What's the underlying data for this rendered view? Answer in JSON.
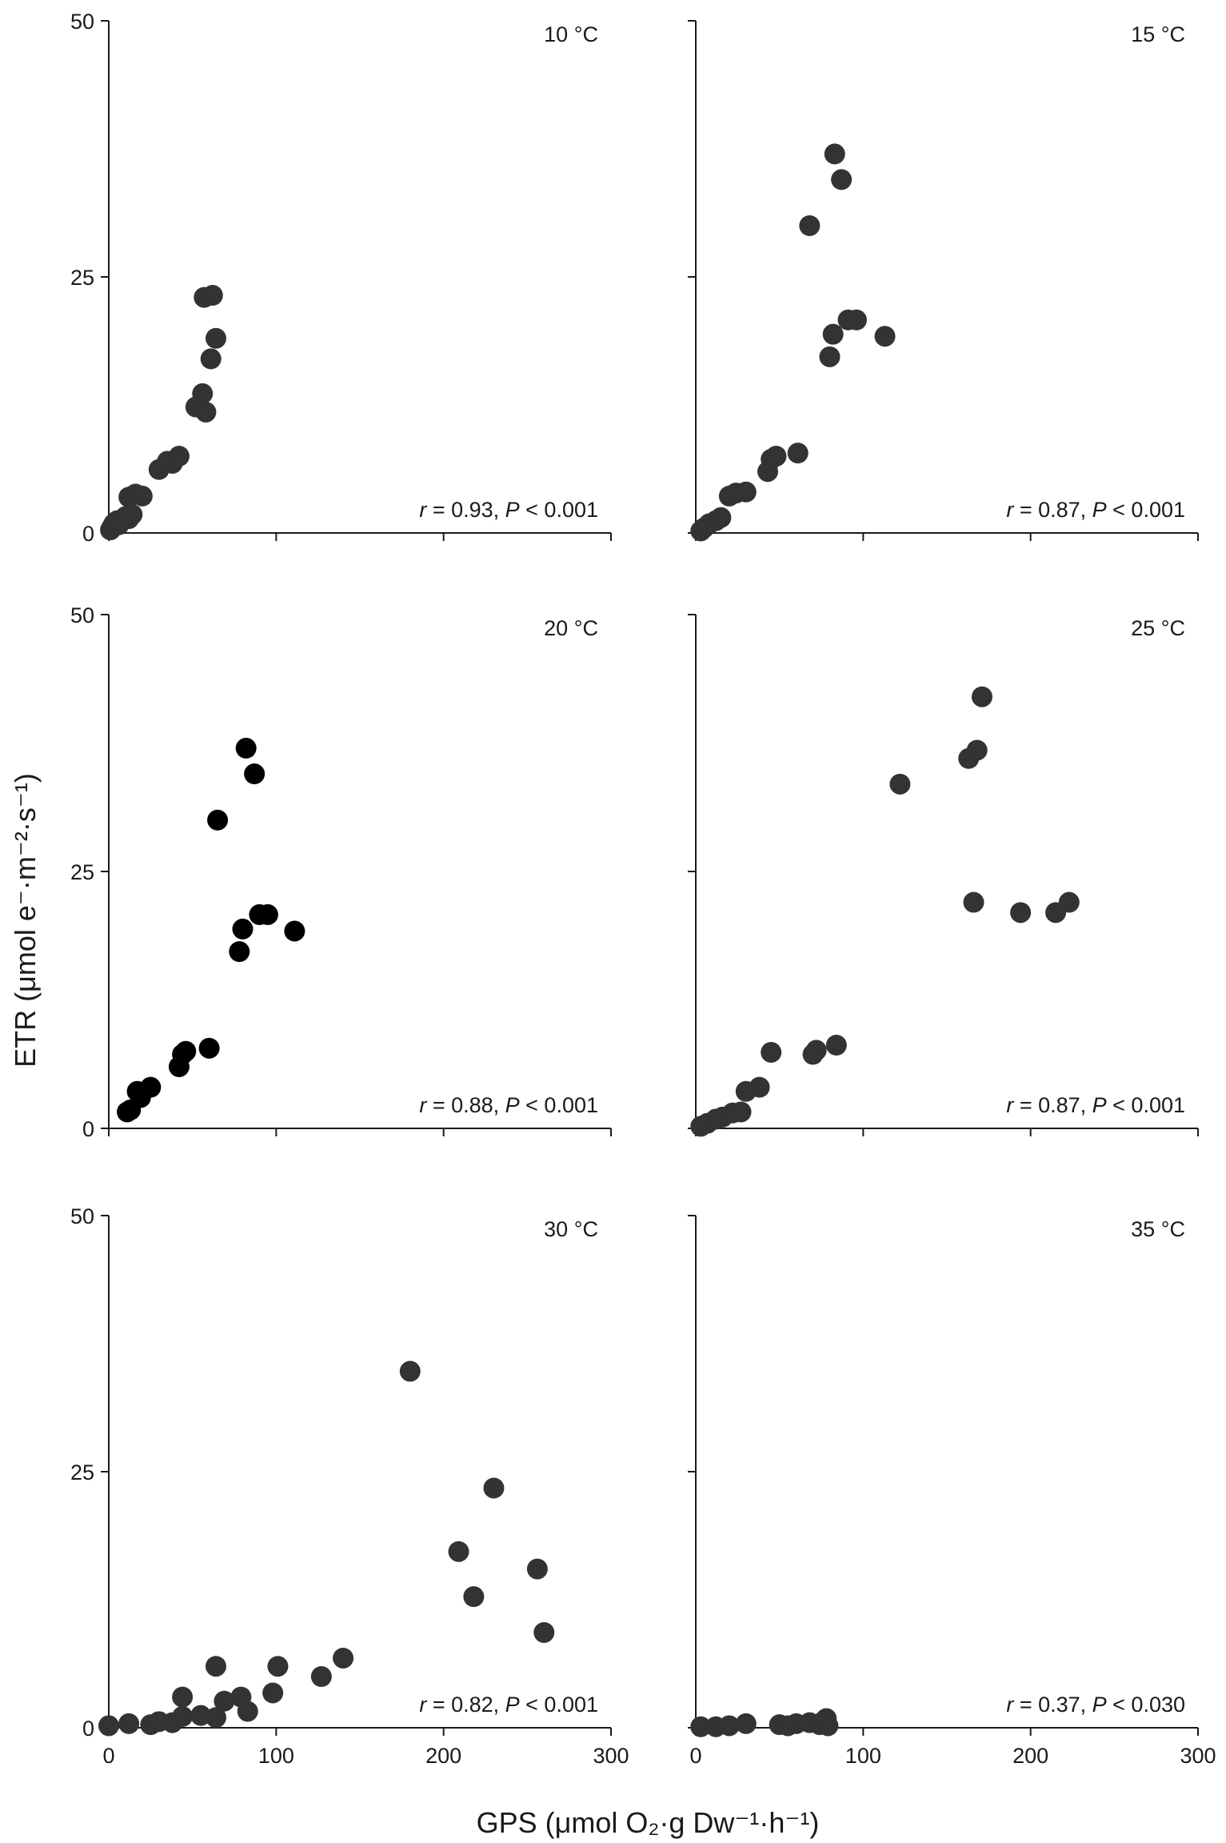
{
  "figure": {
    "xlabel": "GPS (μmol O₂·g Dw⁻¹·h⁻¹)",
    "ylabel": "ETR (μmol e⁻·m⁻²·s⁻¹)"
  },
  "chart_data": [
    {
      "type": "scatter",
      "title": "10 °C",
      "annotation": "r = 0.93, P < 0.001",
      "xlim": [
        0,
        300
      ],
      "ylim": [
        0,
        50
      ],
      "xticks": [
        "0",
        "100",
        "200",
        "300"
      ],
      "yticks": [
        "0",
        "25",
        "50"
      ],
      "show_xticks_labels": false,
      "marker_color": "#333333",
      "points": [
        [
          1,
          0.3
        ],
        [
          2,
          0.6
        ],
        [
          3,
          0.9
        ],
        [
          4,
          1.0
        ],
        [
          5,
          1.2
        ],
        [
          6,
          0.8
        ],
        [
          8,
          1.3
        ],
        [
          10,
          1.6
        ],
        [
          12,
          1.4
        ],
        [
          14,
          1.8
        ],
        [
          12,
          3.5
        ],
        [
          16,
          3.8
        ],
        [
          20,
          3.6
        ],
        [
          30,
          6.2
        ],
        [
          35,
          7.0
        ],
        [
          38,
          6.8
        ],
        [
          42,
          7.5
        ],
        [
          52,
          12.3
        ],
        [
          56,
          13.6
        ],
        [
          58,
          11.8
        ],
        [
          57,
          23.0
        ],
        [
          62,
          23.2
        ],
        [
          61,
          17.0
        ],
        [
          64,
          19.0
        ]
      ]
    },
    {
      "type": "scatter",
      "title": "15 °C",
      "annotation": "r = 0.87, P < 0.001",
      "xlim": [
        0,
        300
      ],
      "ylim": [
        0,
        50
      ],
      "xticks": [
        "0",
        "100",
        "200",
        "300"
      ],
      "yticks": [
        "",
        "",
        ""
      ],
      "show_xticks_labels": false,
      "marker_color": "#333333",
      "points": [
        [
          3,
          0.2
        ],
        [
          5,
          0.5
        ],
        [
          8,
          0.9
        ],
        [
          12,
          1.2
        ],
        [
          15,
          1.5
        ],
        [
          20,
          3.6
        ],
        [
          24,
          3.9
        ],
        [
          30,
          4.0
        ],
        [
          43,
          6.0
        ],
        [
          45,
          7.2
        ],
        [
          48,
          7.5
        ],
        [
          61,
          7.8
        ],
        [
          68,
          30.0
        ],
        [
          80,
          17.2
        ],
        [
          82,
          19.4
        ],
        [
          83,
          37.0
        ],
        [
          87,
          34.5
        ],
        [
          91,
          20.8
        ],
        [
          96,
          20.8
        ],
        [
          113,
          19.2
        ]
      ]
    },
    {
      "type": "scatter",
      "title": "20 °C",
      "annotation": "r = 0.88, P < 0.001",
      "xlim": [
        0,
        300
      ],
      "ylim": [
        0,
        50
      ],
      "xticks": [
        "0",
        "100",
        "200",
        "300"
      ],
      "yticks": [
        "0",
        "25",
        "50"
      ],
      "show_xticks_labels": false,
      "marker_color": "#000000",
      "points": [
        [
          11,
          1.6
        ],
        [
          13,
          1.8
        ],
        [
          17,
          3.6
        ],
        [
          19,
          3.0
        ],
        [
          25,
          4.0
        ],
        [
          42,
          6.0
        ],
        [
          44,
          7.2
        ],
        [
          46,
          7.5
        ],
        [
          60,
          7.8
        ],
        [
          65,
          30.0
        ],
        [
          78,
          17.2
        ],
        [
          80,
          19.4
        ],
        [
          82,
          37.0
        ],
        [
          87,
          34.5
        ],
        [
          90,
          20.8
        ],
        [
          95,
          20.8
        ],
        [
          111,
          19.2
        ]
      ]
    },
    {
      "type": "scatter",
      "title": "25 °C",
      "annotation": "r = 0.87, P < 0.001",
      "xlim": [
        0,
        300
      ],
      "ylim": [
        0,
        50
      ],
      "xticks": [
        "0",
        "100",
        "200",
        "300"
      ],
      "yticks": [
        "",
        "",
        ""
      ],
      "show_xticks_labels": false,
      "marker_color": "#333333",
      "points": [
        [
          3,
          0.2
        ],
        [
          7,
          0.5
        ],
        [
          12,
          0.9
        ],
        [
          16,
          1.1
        ],
        [
          22,
          1.5
        ],
        [
          27,
          1.6
        ],
        [
          30,
          3.6
        ],
        [
          38,
          4.0
        ],
        [
          45,
          7.4
        ],
        [
          70,
          7.2
        ],
        [
          72,
          7.6
        ],
        [
          84,
          8.1
        ],
        [
          122,
          33.5
        ],
        [
          163,
          36.0
        ],
        [
          166,
          22.0
        ],
        [
          168,
          36.8
        ],
        [
          171,
          42.0
        ],
        [
          194,
          21.0
        ],
        [
          215,
          21.0
        ],
        [
          223,
          22.0
        ]
      ]
    },
    {
      "type": "scatter",
      "title": "30 °C",
      "annotation": "r = 0.82,  P < 0.001",
      "xlim": [
        0,
        300
      ],
      "ylim": [
        0,
        50
      ],
      "xticks": [
        "0",
        "100",
        "200",
        "300"
      ],
      "yticks": [
        "0",
        "25",
        "50"
      ],
      "show_xticks_labels": true,
      "marker_color": "#333333",
      "points": [
        [
          0,
          0.2
        ],
        [
          12,
          0.4
        ],
        [
          25,
          0.3
        ],
        [
          30,
          0.6
        ],
        [
          38,
          0.5
        ],
        [
          44,
          1.1
        ],
        [
          44,
          3.0
        ],
        [
          55,
          1.2
        ],
        [
          64,
          1.0
        ],
        [
          64,
          6.0
        ],
        [
          69,
          2.6
        ],
        [
          79,
          3.0
        ],
        [
          83,
          1.6
        ],
        [
          98,
          3.4
        ],
        [
          101,
          6.0
        ],
        [
          127,
          5.0
        ],
        [
          140,
          6.8
        ],
        [
          180,
          34.8
        ],
        [
          209,
          17.2
        ],
        [
          218,
          12.8
        ],
        [
          230,
          23.4
        ],
        [
          256,
          15.5
        ],
        [
          260,
          9.3
        ]
      ]
    },
    {
      "type": "scatter",
      "title": "35 °C",
      "annotation": "r = 0.37,  P < 0.030",
      "xlim": [
        0,
        300
      ],
      "ylim": [
        0,
        50
      ],
      "xticks": [
        "0",
        "100",
        "200",
        "300"
      ],
      "yticks": [
        "",
        "",
        ""
      ],
      "show_xticks_labels": true,
      "marker_color": "#333333",
      "points": [
        [
          3,
          0.1
        ],
        [
          12,
          0.1
        ],
        [
          20,
          0.2
        ],
        [
          30,
          0.4
        ],
        [
          50,
          0.3
        ],
        [
          55,
          0.2
        ],
        [
          60,
          0.4
        ],
        [
          68,
          0.5
        ],
        [
          74,
          0.3
        ],
        [
          76,
          0.6
        ],
        [
          78,
          0.9
        ],
        [
          79,
          0.2
        ]
      ]
    }
  ]
}
